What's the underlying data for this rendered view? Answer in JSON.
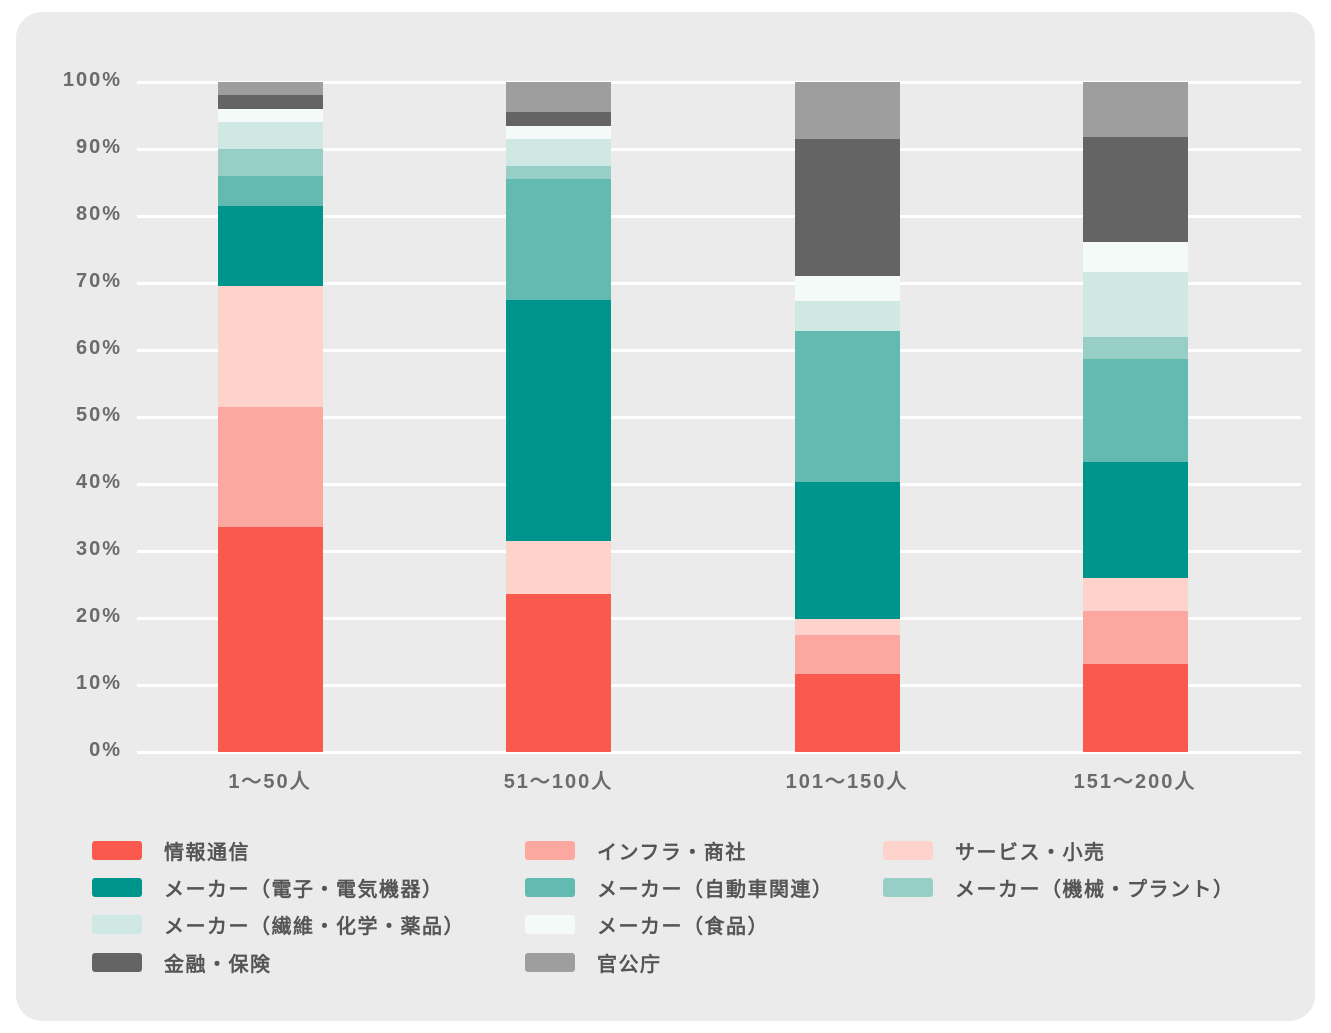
{
  "page": {
    "background_color": "#ffffff",
    "card_background_color": "#ebebeb",
    "gridline_color": "#ffffff",
    "axis_text_color": "#6b6b6b",
    "legend_text_color": "#555555"
  },
  "chart_data": {
    "type": "bar",
    "stacked": true,
    "unit": "percent",
    "title": "",
    "xlabel": "",
    "ylabel": "",
    "grid": true,
    "legend_position": "bottom",
    "categories": [
      "1～50人",
      "51～100人",
      "101～150人",
      "151～200人"
    ],
    "series": [
      {
        "name": "情報通信",
        "color": "#FA5A4E",
        "values": [
          33.5,
          23.5,
          11.7,
          13.2
        ]
      },
      {
        "name": "インフラ・商社",
        "color": "#FCA8A0",
        "values": [
          18,
          0,
          5.8,
          7.9
        ]
      },
      {
        "name": "サービス・小売",
        "color": "#FDD3CC",
        "values": [
          18,
          8,
          2.3,
          4.8
        ]
      },
      {
        "name": "メーカー（電子・電気機器）",
        "color": "#00958C",
        "values": [
          12,
          36,
          20.5,
          17.4
        ]
      },
      {
        "name": "メーカー（自動車関連）",
        "color": "#62BAB0",
        "values": [
          4.5,
          18,
          22.5,
          15.4
        ]
      },
      {
        "name": "メーカー（機械・プラント）",
        "color": "#97CEC6",
        "values": [
          4,
          2,
          0,
          3.2
        ]
      },
      {
        "name": "メーカー（繊維・化学・薬品）",
        "color": "#CFE8E3",
        "values": [
          4,
          4,
          4.5,
          9.7
        ]
      },
      {
        "name": "メーカー（食品）",
        "color": "#F4FAF7",
        "values": [
          2,
          2,
          3.7,
          4.5
        ]
      },
      {
        "name": "金融・保険",
        "color": "#646464",
        "values": [
          2,
          2,
          20.5,
          15.7
        ]
      },
      {
        "name": "官公庁",
        "color": "#9E9E9E",
        "values": [
          2,
          4.5,
          8.5,
          8.2
        ]
      }
    ],
    "y_axis": {
      "min": 0,
      "max": 100,
      "tick_step": 10,
      "ticks": [
        "0%",
        "10%",
        "20%",
        "30%",
        "40%",
        "50%",
        "60%",
        "70%",
        "80%",
        "90%",
        "100%"
      ]
    },
    "legend_columns": [
      [
        0,
        3,
        6,
        8
      ],
      [
        1,
        4,
        7,
        9
      ],
      [
        2,
        5
      ]
    ]
  }
}
